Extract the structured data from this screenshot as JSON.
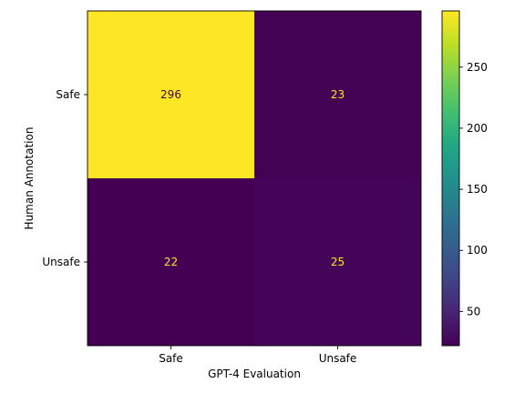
{
  "chart_data": {
    "type": "heatmap",
    "title": "",
    "xlabel": "GPT-4 Evaluation",
    "ylabel": "Human Annotation",
    "x_categories": [
      "Safe",
      "Unsafe"
    ],
    "y_categories": [
      "Safe",
      "Unsafe"
    ],
    "values": [
      [
        296,
        23
      ],
      [
        22,
        25
      ]
    ],
    "colormap": "viridis",
    "colorbar": {
      "range": [
        22,
        296
      ],
      "ticks": [
        50,
        100,
        150,
        200,
        250
      ]
    },
    "colors": {
      "high": "#fde725",
      "low": "#440154",
      "text_on_high": "#440154",
      "text_on_low": "#fde725"
    }
  }
}
